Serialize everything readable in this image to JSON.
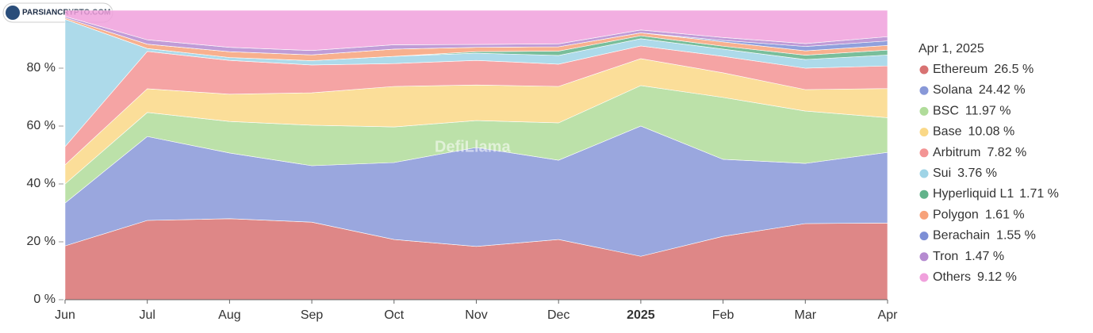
{
  "logo_text": "PARSIANCRYPTO.COM",
  "chart_data": {
    "type": "stacked_area",
    "watermark": "DefiLlama",
    "categories": [
      "Jun",
      "Jul",
      "Aug",
      "Sep",
      "Oct",
      "Nov",
      "Dec",
      "2025",
      "Feb",
      "Mar",
      "Apr"
    ],
    "ylim": [
      0,
      100
    ],
    "yticks": [
      {
        "value": 0,
        "label": "0 %"
      },
      {
        "value": 20,
        "label": "20 %"
      },
      {
        "value": 40,
        "label": "40 %"
      },
      {
        "value": 60,
        "label": "60 %"
      },
      {
        "value": 80,
        "label": "80 %"
      }
    ],
    "legend_title": "Apr 1, 2025",
    "legend": "right",
    "series": [
      {
        "name": "Ethereum",
        "color": "#d87272",
        "values": [
          18.6,
          27.4,
          28,
          26.8,
          20.8,
          18.4,
          20.8,
          15,
          21.9,
          26.3,
          26.5
        ],
        "value_labels": [
          null,
          null,
          null,
          null,
          null,
          null,
          null,
          null,
          null,
          null,
          "26.5 %"
        ]
      },
      {
        "name": "Solana",
        "color": "#8898d8",
        "values": [
          14.8,
          29,
          22.7,
          19.5,
          26.6,
          34.2,
          27.4,
          45,
          26.6,
          20.8,
          24.42
        ],
        "value_labels": [
          null,
          null,
          null,
          null,
          null,
          null,
          null,
          null,
          null,
          null,
          "24.42 %"
        ]
      },
      {
        "name": "BSC",
        "color": "#b0dc9a",
        "values": [
          6.6,
          8.3,
          10.9,
          14,
          12.3,
          9.3,
          12.9,
          14,
          21.4,
          18.1,
          11.97
        ],
        "value_labels": [
          null,
          null,
          null,
          null,
          null,
          null,
          null,
          null,
          null,
          null,
          "11.97 %"
        ]
      },
      {
        "name": "Base",
        "color": "#fad887",
        "values": [
          6.6,
          8.2,
          9.4,
          11.2,
          14,
          12.3,
          12.6,
          9.3,
          8.5,
          7.4,
          10.08
        ],
        "value_labels": [
          null,
          null,
          null,
          null,
          null,
          null,
          null,
          null,
          null,
          null,
          "10.08 %"
        ]
      },
      {
        "name": "Arbitrum",
        "color": "#f39494",
        "values": [
          6.3,
          12.9,
          11.7,
          9.6,
          7.9,
          8.5,
          7.7,
          4.4,
          5.7,
          7.4,
          7.82
        ],
        "value_labels": [
          null,
          null,
          null,
          null,
          null,
          null,
          null,
          null,
          null,
          null,
          "7.82 %"
        ]
      },
      {
        "name": "Sui",
        "color": "#9fd4e6",
        "values": [
          44,
          1,
          1,
          1.5,
          2.5,
          2.5,
          3,
          2.5,
          2.5,
          3,
          3.76
        ],
        "value_labels": [
          null,
          null,
          null,
          null,
          null,
          null,
          null,
          null,
          null,
          null,
          "3.76 %"
        ]
      },
      {
        "name": "Hyperliquid L1",
        "color": "#62b38a",
        "values": [
          0,
          0,
          0,
          0,
          0,
          0.5,
          1.5,
          1,
          1,
          1.5,
          1.71
        ],
        "value_labels": [
          null,
          null,
          null,
          null,
          null,
          null,
          null,
          null,
          null,
          null,
          "1.71 %"
        ]
      },
      {
        "name": "Polygon",
        "color": "#f7a27a",
        "values": [
          0.5,
          1.5,
          2,
          2,
          2.5,
          1.5,
          1.5,
          1,
          1.5,
          1.5,
          1.61
        ],
        "value_labels": [
          null,
          null,
          null,
          null,
          null,
          null,
          null,
          null,
          null,
          null,
          "1.61 %"
        ]
      },
      {
        "name": "Berachain",
        "color": "#7d8fd6",
        "values": [
          0,
          0,
          0,
          0,
          0,
          0,
          0,
          0,
          0.5,
          1.5,
          1.55
        ],
        "value_labels": [
          null,
          null,
          null,
          null,
          null,
          null,
          null,
          null,
          null,
          null,
          "1.55 %"
        ]
      },
      {
        "name": "Tron",
        "color": "#b58bd0",
        "values": [
          0.5,
          1.5,
          1.5,
          1.5,
          1.5,
          1,
          1,
          1,
          1,
          1,
          1.47
        ],
        "value_labels": [
          null,
          null,
          null,
          null,
          null,
          null,
          null,
          null,
          null,
          null,
          "1.47 %"
        ]
      },
      {
        "name": "Others",
        "color": "#f0a0dc",
        "values": [
          2.1,
          10.2,
          12.8,
          13.9,
          11.9,
          11.8,
          11.6,
          6.8,
          9.4,
          11.5,
          9.12
        ],
        "value_labels": [
          null,
          null,
          null,
          null,
          null,
          null,
          null,
          null,
          null,
          null,
          "9.12 %"
        ]
      }
    ]
  }
}
